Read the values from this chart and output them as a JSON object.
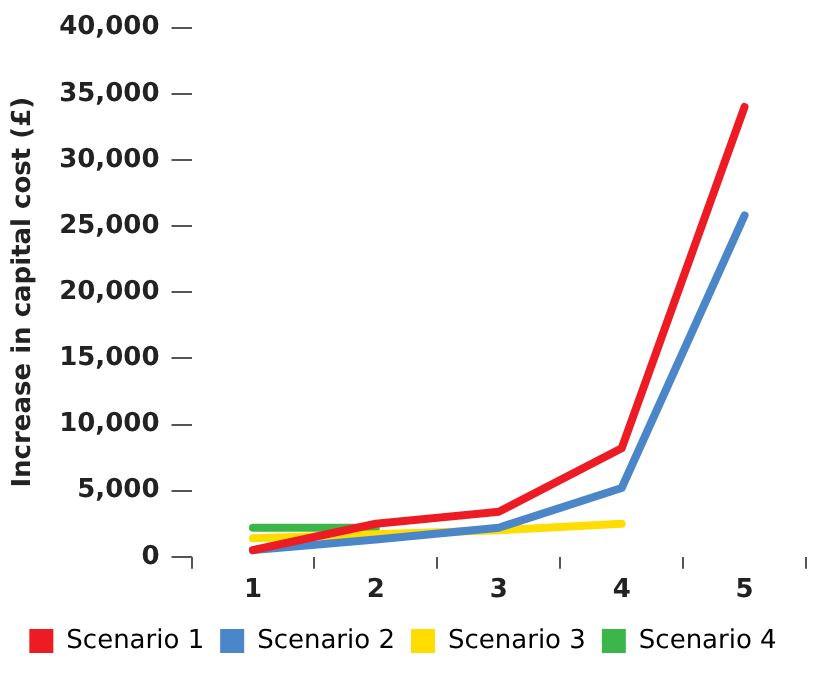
{
  "chart_data": {
    "type": "line",
    "ylabel": "Increase in capital cost (£)",
    "categories": [
      "1",
      "2",
      "3",
      "4",
      "5"
    ],
    "series": [
      {
        "name": "Scenario 1",
        "color": "#ed1c24",
        "values": [
          500,
          2500,
          3400,
          8200,
          34000
        ]
      },
      {
        "name": "Scenario 2",
        "color": "#4a86c8",
        "values": [
          500,
          1300,
          2200,
          5200,
          25800
        ]
      },
      {
        "name": "Scenario 3",
        "color": "#ffdd00",
        "values": [
          1400,
          1700,
          2000,
          2500,
          null
        ]
      },
      {
        "name": "Scenario 4",
        "color": "#3cb54a",
        "values": [
          2200,
          2200,
          null,
          null,
          null
        ]
      }
    ],
    "ylim": [
      0,
      40000
    ],
    "yticks": [
      0,
      {
        "value": 5000,
        "label": "5,000"
      },
      {
        "value": 10000,
        "label": "10,000"
      },
      {
        "value": 15000,
        "label": "15,000"
      },
      {
        "value": 20000,
        "label": "20,000"
      },
      {
        "value": 25000,
        "label": "25,000"
      },
      {
        "value": 30000,
        "label": "30,000"
      },
      {
        "value": 35000,
        "label": "35,000"
      },
      {
        "value": 40000,
        "label": "40,000"
      }
    ],
    "grid": false,
    "legend": "bottom",
    "marker": "none",
    "line_style": "solid"
  }
}
